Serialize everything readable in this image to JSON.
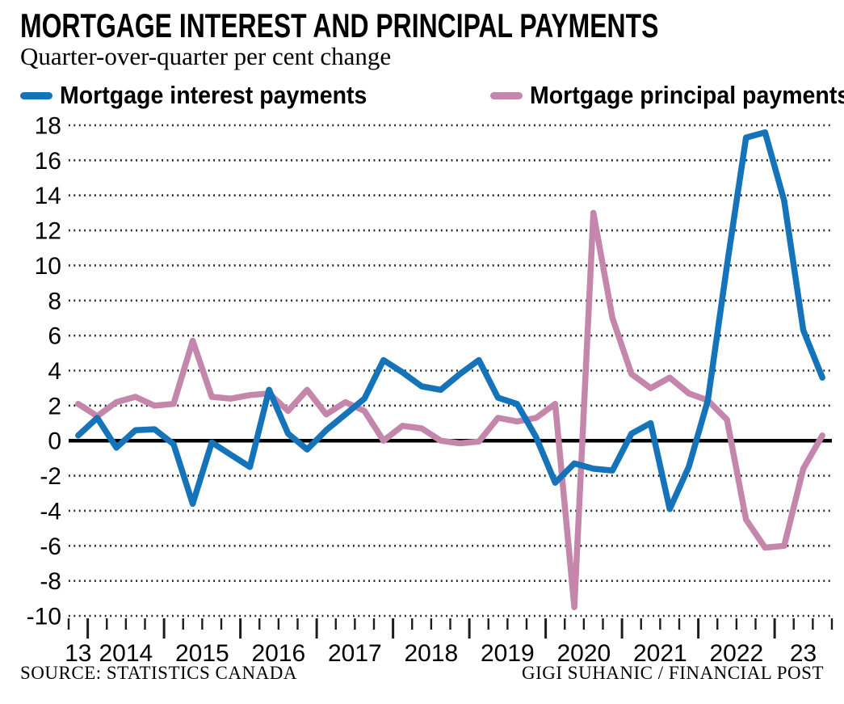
{
  "header": {
    "title": "MORTGAGE INTEREST AND PRINCIPAL PAYMENTS",
    "subtitle": "Quarter-over-quarter per cent change"
  },
  "legend": [
    {
      "label": "Mortgage interest payments",
      "color": "#1473b9"
    },
    {
      "label": "Mortgage principal payments",
      "color": "#c586ac"
    }
  ],
  "footer": {
    "source": "SOURCE: STATISTICS CANADA",
    "credit": "GIGI SUHANIC / FINANCIAL POST"
  },
  "chart_data": {
    "type": "line",
    "title": "MORTGAGE INTEREST AND PRINCIPAL PAYMENTS",
    "subtitle": "Quarter-over-quarter per cent change",
    "ylabel": "",
    "xlabel": "",
    "ylim": [
      -10,
      18
    ],
    "ytick_step": 2,
    "grid": "dotted-horizontal",
    "zero_line": true,
    "legend_position": "top",
    "x_axis_labels": [
      "13",
      "2014",
      "2015",
      "2016",
      "2017",
      "2018",
      "2019",
      "2020",
      "2021",
      "2022",
      "23"
    ],
    "quarters_per_label": [
      1,
      4,
      4,
      4,
      4,
      4,
      4,
      4,
      4,
      4,
      3
    ],
    "categories": [
      "2013 Q4",
      "2014 Q1",
      "2014 Q2",
      "2014 Q3",
      "2014 Q4",
      "2015 Q1",
      "2015 Q2",
      "2015 Q3",
      "2015 Q4",
      "2016 Q1",
      "2016 Q2",
      "2016 Q3",
      "2016 Q4",
      "2017 Q1",
      "2017 Q2",
      "2017 Q3",
      "2017 Q4",
      "2018 Q1",
      "2018 Q2",
      "2018 Q3",
      "2018 Q4",
      "2019 Q1",
      "2019 Q2",
      "2019 Q3",
      "2019 Q4",
      "2020 Q1",
      "2020 Q2",
      "2020 Q3",
      "2020 Q4",
      "2021 Q1",
      "2021 Q2",
      "2021 Q3",
      "2021 Q4",
      "2022 Q1",
      "2022 Q2",
      "2022 Q3",
      "2022 Q4",
      "2023 Q1",
      "2023 Q2",
      "2023 Q3"
    ],
    "series": [
      {
        "name": "Mortgage interest payments",
        "color": "#1473b9",
        "values": [
          0.3,
          1.3,
          -0.4,
          0.6,
          0.65,
          -0.2,
          -3.6,
          -0.1,
          -0.8,
          -1.5,
          2.9,
          0.4,
          -0.5,
          0.6,
          1.5,
          2.4,
          4.6,
          3.9,
          3.1,
          2.9,
          3.8,
          4.6,
          2.45,
          2.1,
          0.2,
          -2.4,
          -1.3,
          -1.6,
          -1.7,
          0.4,
          1.0,
          -3.9,
          -1.5,
          2.3,
          10.0,
          17.3,
          17.6,
          13.7,
          6.3,
          3.6
        ]
      },
      {
        "name": "Mortgage principal payments",
        "color": "#c586ac",
        "values": [
          2.1,
          1.4,
          2.2,
          2.5,
          2.0,
          2.1,
          5.7,
          2.5,
          2.4,
          2.6,
          2.7,
          1.7,
          2.9,
          1.5,
          2.2,
          1.7,
          0.0,
          0.85,
          0.7,
          0.0,
          -0.15,
          -0.05,
          1.3,
          1.1,
          1.3,
          2.1,
          -9.5,
          13.0,
          7.0,
          3.8,
          3.0,
          3.6,
          2.7,
          2.3,
          1.2,
          -4.5,
          -6.1,
          -6.0,
          -1.6,
          0.3
        ]
      }
    ]
  }
}
